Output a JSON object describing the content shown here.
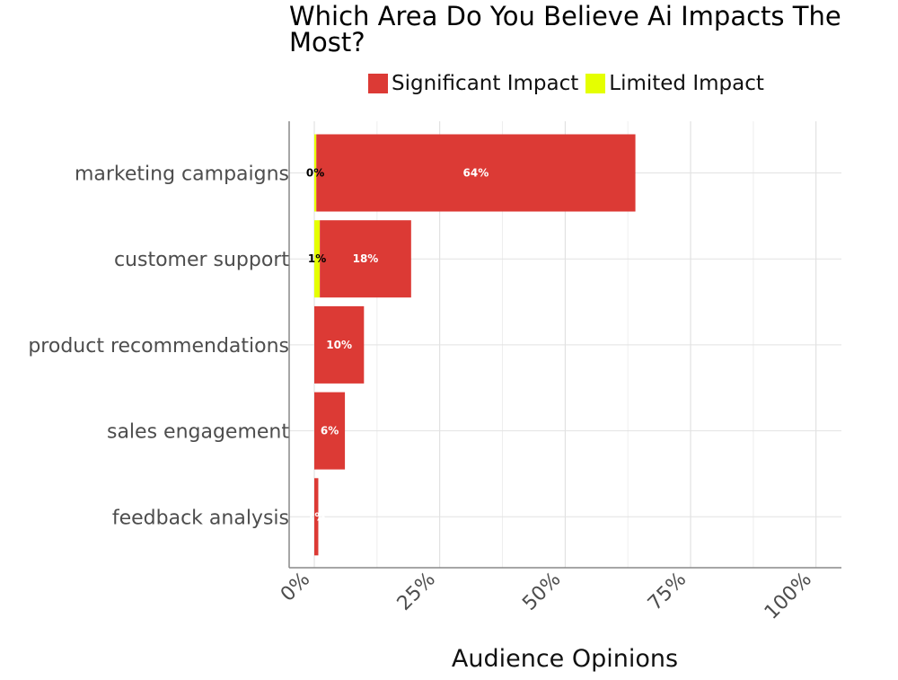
{
  "chart_data": {
    "type": "bar",
    "orientation": "horizontal",
    "stacked": true,
    "title": "Which Area Do You Believe Ai Impacts The Most?",
    "xlabel": "Audience Opinions",
    "ylabel": "",
    "xlim": [
      0,
      105
    ],
    "x_ticks": [
      "0%",
      "25%",
      "50%",
      "75%",
      "100%"
    ],
    "x_tick_values": [
      0,
      25,
      50,
      75,
      100
    ],
    "grid": true,
    "legend_position": "top",
    "categories": [
      "marketing campaigns",
      "customer support",
      "product recommendations",
      "sales engagement",
      "feedback analysis"
    ],
    "series": [
      {
        "name": "Limited Impact",
        "color": "#e5ff00",
        "values": [
          0.4,
          1.1,
          0,
          0,
          0
        ],
        "labels": [
          "0%",
          "1%",
          "",
          "",
          ""
        ],
        "label_color": "#000000"
      },
      {
        "name": "Significant Impact",
        "color": "#dc3a35",
        "values": [
          63.6,
          18.2,
          9.9,
          6.1,
          0.8
        ],
        "labels": [
          "64%",
          "18%",
          "10%",
          "6%",
          "1%"
        ],
        "label_color": "#ffffff"
      }
    ]
  },
  "legend_items": [
    {
      "label": "Significant Impact",
      "color": "#dc3a35"
    },
    {
      "label": "Limited Impact",
      "color": "#e5ff00"
    }
  ]
}
